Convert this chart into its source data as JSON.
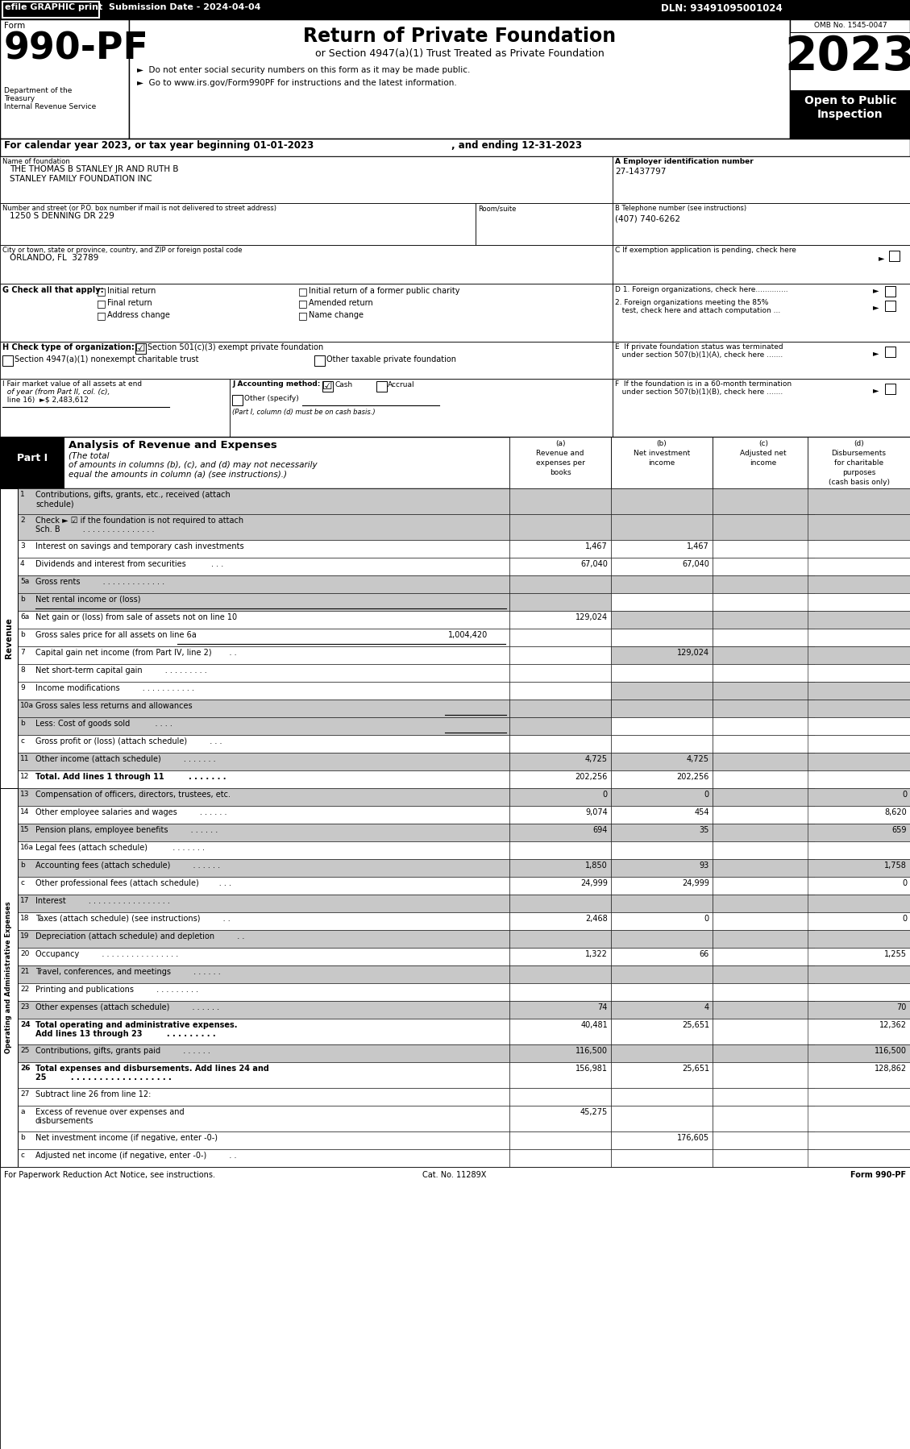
{
  "header_bar": {
    "efile_text": "efile GRAPHIC print",
    "submission_text": "Submission Date - 2024-04-04",
    "dln_text": "DLN: 93491095001024"
  },
  "form_number": "990-PF",
  "form_label": "Form",
  "form_dept1": "Department of the",
  "form_dept2": "Treasury",
  "form_dept3": "Internal Revenue Service",
  "title_main": "Return of Private Foundation",
  "title_sub": "or Section 4947(a)(1) Trust Treated as Private Foundation",
  "bullet1": "►  Do not enter social security numbers on this form as it may be made public.",
  "bullet2": "►  Go to www.irs.gov/Form990PF for instructions and the latest information.",
  "year_box": "2023",
  "open_text1": "Open to Public",
  "open_text2": "Inspection",
  "omb_text": "OMB No. 1545-0047",
  "cal_year_line1": "For calendar year 2023, or tax year beginning 01-01-2023",
  "cal_year_line2": ", and ending 12-31-2023",
  "name_label": "Name of foundation",
  "name_line1": "THE THOMAS B STANLEY JR AND RUTH B",
  "name_line2": "STANLEY FAMILY FOUNDATION INC",
  "ein_label": "A Employer identification number",
  "ein_value": "27-1437797",
  "address_label": "Number and street (or P.O. box number if mail is not delivered to street address)",
  "address_room": "Room/suite",
  "address_value": "1250 S DENNING DR 229",
  "phone_label": "B Telephone number (see instructions)",
  "phone_value": "(407) 740-6262",
  "city_label": "City or town, state or province, country, and ZIP or foreign postal code",
  "city_value": "ORLANDO, FL  32789",
  "exemption_label": "C If exemption application is pending, check here",
  "g_label": "G Check all that apply:",
  "g_checks": [
    "Initial return",
    "Initial return of a former public charity",
    "Final return",
    "Amended return",
    "Address change",
    "Name change"
  ],
  "d1_label": "D 1. Foreign organizations, check here..............",
  "d2_label1": "2. Foreign organizations meeting the 85%",
  "d2_label2": "   test, check here and attach computation ...",
  "e_label1": "E  If private foundation status was terminated",
  "e_label2": "   under section 507(b)(1)(A), check here .......",
  "h_label": "H Check type of organization:",
  "h_check1": "Section 501(c)(3) exempt private foundation",
  "h_check2": "Section 4947(a)(1) nonexempt charitable trust",
  "h_check3": "Other taxable private foundation",
  "i_label1": "I Fair market value of all assets at end",
  "i_label2": "  of year (from Part II, col. (c),",
  "i_label3": "  line 16)  ►$ 2,483,612",
  "j_label": "J Accounting method:",
  "j_cash": "Cash",
  "j_accrual": "Accrual",
  "j_other": "Other (specify)",
  "j_note": "(Part I, column (d) must be on cash basis.)",
  "f_label1": "F  If the foundation is in a 60-month termination",
  "f_label2": "   under section 507(b)(1)(B), check here .......",
  "part1_label": "Part I",
  "part1_title": "Analysis of Revenue and Expenses",
  "part1_italic": "(The total",
  "part1_italic2": "of amounts in columns (b), (c), and (d) may not necessarily",
  "part1_italic3": "equal the amounts in column (a) (see instructions).)",
  "col_a_lines": [
    "(a)",
    "Revenue and",
    "expenses per",
    "books"
  ],
  "col_b_lines": [
    "(b)",
    "Net investment",
    "income"
  ],
  "col_c_lines": [
    "(c)",
    "Adjusted net",
    "income"
  ],
  "col_d_lines": [
    "(d)",
    "Disbursements",
    "for charitable",
    "purposes",
    "(cash basis only)"
  ],
  "rows": [
    {
      "num": "1",
      "label1": "Contributions, gifts, grants, etc., received (attach",
      "label2": "schedule)",
      "a": "",
      "b": "",
      "c": "",
      "d": "",
      "shade_a": true,
      "shade_bcd": true
    },
    {
      "num": "2",
      "label1": "Check ► ☑ if the foundation is not required to attach",
      "label2": "Sch. B         . . . . . . . . . . . . . . .",
      "a": "",
      "b": "",
      "c": "",
      "d": "",
      "shade_a": true,
      "shade_bcd": true
    },
    {
      "num": "3",
      "label1": "Interest on savings and temporary cash investments",
      "label2": "",
      "a": "1,467",
      "b": "1,467",
      "c": "",
      "d": "",
      "shade_a": false,
      "shade_bcd": false
    },
    {
      "num": "4",
      "label1": "Dividends and interest from securities          . . .",
      "label2": "",
      "a": "67,040",
      "b": "67,040",
      "c": "",
      "d": "",
      "shade_a": false,
      "shade_bcd": false
    },
    {
      "num": "5a",
      "label1": "Gross rents         . . . . . . . . . . . . .",
      "label2": "",
      "a": "",
      "b": "",
      "c": "",
      "d": "",
      "shade_a": true,
      "shade_bcd": true
    },
    {
      "num": "b",
      "label1": "Net rental income or (loss)",
      "label2": "",
      "a": "",
      "b": "",
      "c": "",
      "d": "",
      "shade_a": true,
      "shade_bcd": false
    },
    {
      "num": "6a",
      "label1": "Net gain or (loss) from sale of assets not on line 10",
      "label2": "",
      "a": "129,024",
      "b": "",
      "c": "",
      "d": "",
      "shade_a": false,
      "shade_bcd": true
    },
    {
      "num": "b",
      "label1": "Gross sales price for all assets on line 6a",
      "label2": "",
      "a": "",
      "b": "",
      "c": "",
      "d": "",
      "shade_a": false,
      "shade_bcd": false,
      "inline_val": "1,004,420"
    },
    {
      "num": "7",
      "label1": "Capital gain net income (from Part IV, line 2)       . .",
      "label2": "",
      "a": "",
      "b": "129,024",
      "c": "",
      "d": "",
      "shade_a": false,
      "shade_bcd": true
    },
    {
      "num": "8",
      "label1": "Net short-term capital gain         . . . . . . . . .",
      "label2": "",
      "a": "",
      "b": "",
      "c": "",
      "d": "",
      "shade_a": false,
      "shade_bcd": false
    },
    {
      "num": "9",
      "label1": "Income modifications         . . . . . . . . . . .",
      "label2": "",
      "a": "",
      "b": "",
      "c": "",
      "d": "",
      "shade_a": false,
      "shade_bcd": true
    },
    {
      "num": "10a",
      "label1": "Gross sales less returns and allowances",
      "label2": "",
      "a": "",
      "b": "",
      "c": "",
      "d": "",
      "shade_a": true,
      "shade_bcd": true
    },
    {
      "num": "b",
      "label1": "Less: Cost of goods sold          . . . .",
      "label2": "",
      "a": "",
      "b": "",
      "c": "",
      "d": "",
      "shade_a": true,
      "shade_bcd": false
    },
    {
      "num": "c",
      "label1": "Gross profit or (loss) (attach schedule)         . . .",
      "label2": "",
      "a": "",
      "b": "",
      "c": "",
      "d": "",
      "shade_a": false,
      "shade_bcd": false
    },
    {
      "num": "11",
      "label1": "Other income (attach schedule)         . . . . . . .",
      "label2": "",
      "a": "4,725",
      "b": "4,725",
      "c": "",
      "d": "",
      "shade_a": true,
      "shade_bcd": true
    },
    {
      "num": "12",
      "label1": "Total. Add lines 1 through 11         . . . . . . .",
      "label2": "",
      "a": "202,256",
      "b": "202,256",
      "c": "",
      "d": "",
      "shade_a": false,
      "shade_bcd": false,
      "bold": true
    }
  ],
  "exp_rows": [
    {
      "num": "13",
      "label1": "Compensation of officers, directors, trustees, etc.",
      "label2": "",
      "a": "0",
      "b": "0",
      "c": "",
      "d": "0",
      "shade_a": true,
      "shade_bcd": true
    },
    {
      "num": "14",
      "label1": "Other employee salaries and wages         . . . . . .",
      "label2": "",
      "a": "9,074",
      "b": "454",
      "c": "",
      "d": "8,620",
      "shade_a": false,
      "shade_bcd": false
    },
    {
      "num": "15",
      "label1": "Pension plans, employee benefits         . . . . . .",
      "label2": "",
      "a": "694",
      "b": "35",
      "c": "",
      "d": "659",
      "shade_a": true,
      "shade_bcd": true
    },
    {
      "num": "16a",
      "label1": "Legal fees (attach schedule)          . . . . . . .",
      "label2": "",
      "a": "",
      "b": "",
      "c": "",
      "d": "",
      "shade_a": false,
      "shade_bcd": false
    },
    {
      "num": "b",
      "label1": "Accounting fees (attach schedule)         . . . . . .",
      "label2": "",
      "a": "1,850",
      "b": "93",
      "c": "",
      "d": "1,758",
      "shade_a": true,
      "shade_bcd": true
    },
    {
      "num": "c",
      "label1": "Other professional fees (attach schedule)        . . .",
      "label2": "",
      "a": "24,999",
      "b": "24,999",
      "c": "",
      "d": "0",
      "shade_a": false,
      "shade_bcd": false
    },
    {
      "num": "17",
      "label1": "Interest         . . . . . . . . . . . . . . . . .",
      "label2": "",
      "a": "",
      "b": "",
      "c": "",
      "d": "",
      "shade_a": true,
      "shade_bcd": true
    },
    {
      "num": "18",
      "label1": "Taxes (attach schedule) (see instructions)         . .",
      "label2": "",
      "a": "2,468",
      "b": "0",
      "c": "",
      "d": "0",
      "shade_a": false,
      "shade_bcd": false
    },
    {
      "num": "19",
      "label1": "Depreciation (attach schedule) and depletion         . .",
      "label2": "",
      "a": "",
      "b": "",
      "c": "",
      "d": "",
      "shade_a": true,
      "shade_bcd": true
    },
    {
      "num": "20",
      "label1": "Occupancy         . . . . . . . . . . . . . . . .",
      "label2": "",
      "a": "1,322",
      "b": "66",
      "c": "",
      "d": "1,255",
      "shade_a": false,
      "shade_bcd": false
    },
    {
      "num": "21",
      "label1": "Travel, conferences, and meetings         . . . . . .",
      "label2": "",
      "a": "",
      "b": "",
      "c": "",
      "d": "",
      "shade_a": true,
      "shade_bcd": true
    },
    {
      "num": "22",
      "label1": "Printing and publications         . . . . . . . . .",
      "label2": "",
      "a": "",
      "b": "",
      "c": "",
      "d": "",
      "shade_a": false,
      "shade_bcd": false
    },
    {
      "num": "23",
      "label1": "Other expenses (attach schedule)         . . . . . .",
      "label2": "",
      "a": "74",
      "b": "4",
      "c": "",
      "d": "70",
      "shade_a": true,
      "shade_bcd": true
    },
    {
      "num": "24",
      "label1": "Total operating and administrative expenses.",
      "label2": "Add lines 13 through 23         . . . . . . . . .",
      "a": "40,481",
      "b": "25,651",
      "c": "",
      "d": "12,362",
      "shade_a": false,
      "shade_bcd": false,
      "bold": true
    },
    {
      "num": "25",
      "label1": "Contributions, gifts, grants paid         . . . . . .",
      "label2": "",
      "a": "116,500",
      "b": "",
      "c": "",
      "d": "116,500",
      "shade_a": true,
      "shade_bcd": true
    },
    {
      "num": "26",
      "label1": "Total expenses and disbursements. Add lines 24 and",
      "label2": "25         . . . . . . . . . . . . . . . . . .",
      "a": "156,981",
      "b": "25,651",
      "c": "",
      "d": "128,862",
      "shade_a": false,
      "shade_bcd": false,
      "bold": true
    },
    {
      "num": "27",
      "label1": "Subtract line 26 from line 12:",
      "label2": "",
      "a": "",
      "b": "",
      "c": "",
      "d": "",
      "shade_a": false,
      "shade_bcd": false
    },
    {
      "num": "a",
      "label1": "Excess of revenue over expenses and",
      "label2": "disbursements",
      "a": "45,275",
      "b": "",
      "c": "",
      "d": "",
      "shade_a": false,
      "shade_bcd": false
    },
    {
      "num": "b",
      "label1": "Net investment income (if negative, enter -0-)",
      "label2": "",
      "a": "",
      "b": "176,605",
      "c": "",
      "d": "",
      "shade_a": false,
      "shade_bcd": false
    },
    {
      "num": "c",
      "label1": "Adjusted net income (if negative, enter -0-)         . .",
      "label2": "",
      "a": "",
      "b": "",
      "c": "",
      "d": "",
      "shade_a": false,
      "shade_bcd": false
    }
  ],
  "footer_left": "For Paperwork Reduction Act Notice, see instructions.",
  "footer_cat": "Cat. No. 11289X",
  "footer_form": "Form 990-PF"
}
